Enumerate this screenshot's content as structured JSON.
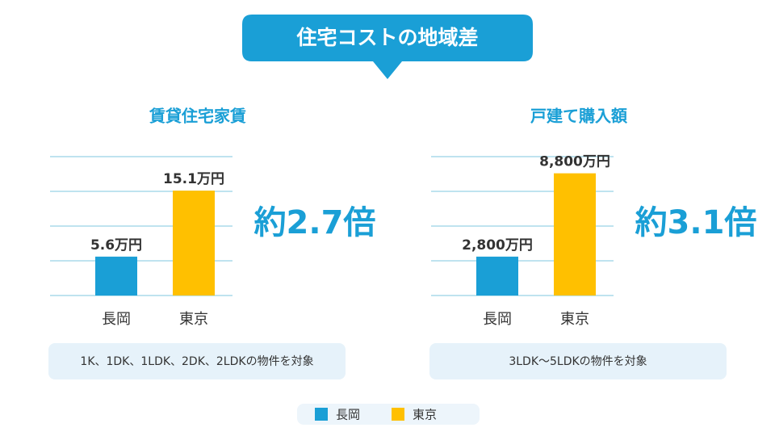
{
  "title": "住宅コストの地域差",
  "chart_data": [
    {
      "type": "bar",
      "title": "賃貸住宅家賃",
      "categories": [
        "長岡",
        "東京"
      ],
      "values": [
        5.6,
        15.1
      ],
      "value_labels": [
        "5.6万円",
        "15.1万円"
      ],
      "colors": [
        "#1a9fd6",
        "#ffc000"
      ],
      "ylim": [
        0,
        20
      ],
      "yticks": [
        0,
        5,
        10,
        15,
        20
      ],
      "grid": true,
      "annotation": "約2.7倍",
      "note": "1K、1DK、1LDK、2DK、2LDKの物件を対象"
    },
    {
      "type": "bar",
      "title": "戸建て購入額",
      "categories": [
        "長岡",
        "東京"
      ],
      "values": [
        2800,
        8800
      ],
      "value_labels": [
        "2,800万円",
        "8,800万円"
      ],
      "colors": [
        "#1a9fd6",
        "#ffc000"
      ],
      "ylim": [
        0,
        10000
      ],
      "yticks": [
        0,
        2500,
        5000,
        7500,
        10000
      ],
      "grid": true,
      "annotation": "約3.1倍",
      "note": "3LDK〜5LDKの物件を対象"
    }
  ],
  "legend": [
    {
      "name": "長岡",
      "color": "#1a9fd6"
    },
    {
      "name": "東京",
      "color": "#ffc000"
    }
  ]
}
